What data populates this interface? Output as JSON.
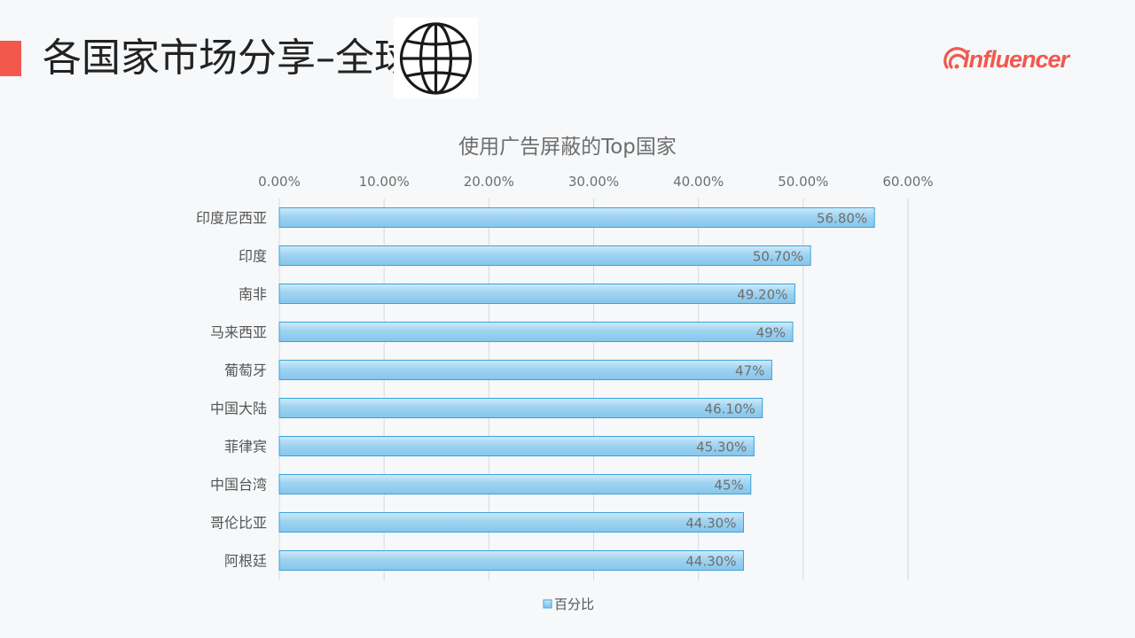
{
  "header": {
    "title": "各国家市场分享–全球",
    "globe_icon": "globe-icon",
    "logo_text": "influencer",
    "accent_color": "#f2584c"
  },
  "chart_data": {
    "type": "bar",
    "orientation": "horizontal",
    "title": "使用广告屏蔽的Top国家",
    "categories": [
      "印度尼西亚",
      "印度",
      "南非",
      "马来西亚",
      "葡萄牙",
      "中国大陆",
      "菲律宾",
      "中国台湾",
      "哥伦比亚",
      "阿根廷"
    ],
    "series": [
      {
        "name": "百分比",
        "values": [
          56.8,
          50.7,
          49.2,
          49,
          47,
          46.1,
          45.3,
          45,
          44.3,
          44.3
        ],
        "labels": [
          "56.80%",
          "50.70%",
          "49.20%",
          "49%",
          "47%",
          "46.10%",
          "45.30%",
          "45%",
          "44.30%",
          "44.30%"
        ],
        "color": "#8ecdf0",
        "border_color": "#3aa3d8"
      }
    ],
    "x_ticks": [
      "0.00%",
      "10.00%",
      "20.00%",
      "30.00%",
      "40.00%",
      "50.00%",
      "60.00%"
    ],
    "xlim": [
      0,
      60
    ],
    "grid": true,
    "legend_position": "bottom"
  }
}
